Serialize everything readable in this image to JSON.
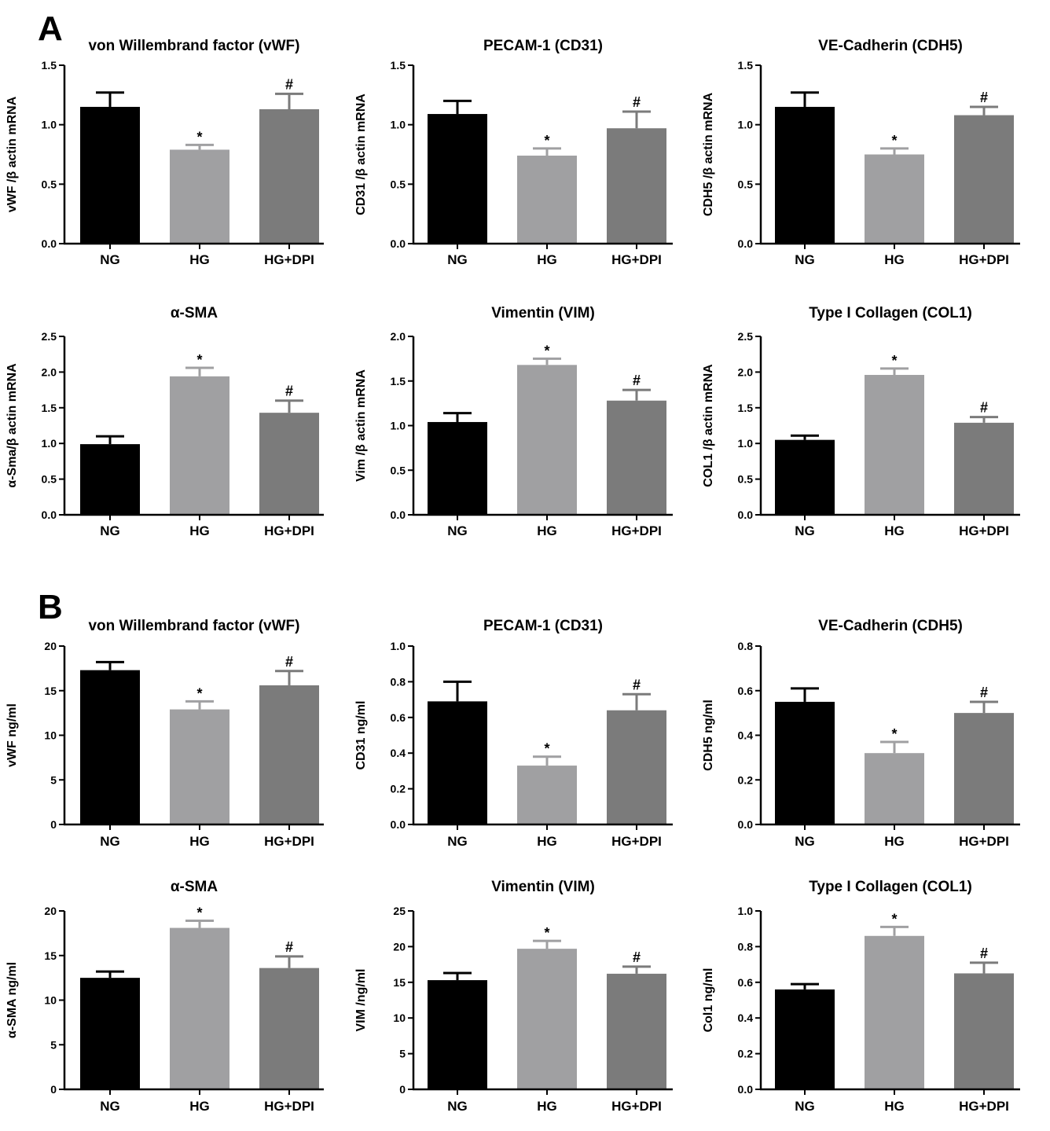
{
  "panels": [
    {
      "label": "A"
    },
    {
      "label": "B"
    }
  ],
  "colors": {
    "NG": "#000000",
    "HG": "#a0a0a2",
    "HG+DPI": "#7b7b7b",
    "axis": "#000000"
  },
  "chart_data": [
    {
      "type": "bar",
      "panel": "A",
      "title": "von Willembrand factor (vWF)",
      "ylabel": "vWF /β actin mRNA",
      "categories": [
        "NG",
        "HG",
        "HG+DPI"
      ],
      "values": [
        1.15,
        0.79,
        1.13
      ],
      "errors": [
        0.12,
        0.04,
        0.13
      ],
      "annotations": [
        "",
        "*",
        "#"
      ],
      "ylim": [
        0,
        1.5
      ],
      "yticks": [
        "0.0",
        "0.5",
        "1.0",
        "1.5"
      ]
    },
    {
      "type": "bar",
      "panel": "A",
      "title": "PECAM-1 (CD31)",
      "ylabel": "CD31 /β actin mRNA",
      "categories": [
        "NG",
        "HG",
        "HG+DPI"
      ],
      "values": [
        1.09,
        0.74,
        0.97
      ],
      "errors": [
        0.11,
        0.06,
        0.14
      ],
      "annotations": [
        "",
        "*",
        "#"
      ],
      "ylim": [
        0,
        1.5
      ],
      "yticks": [
        "0.0",
        "0.5",
        "1.0",
        "1.5"
      ]
    },
    {
      "type": "bar",
      "panel": "A",
      "title": "VE-Cadherin (CDH5)",
      "ylabel": "CDH5 /β actin mRNA",
      "categories": [
        "NG",
        "HG",
        "HG+DPI"
      ],
      "values": [
        1.15,
        0.75,
        1.08
      ],
      "errors": [
        0.12,
        0.05,
        0.07
      ],
      "annotations": [
        "",
        "*",
        "#"
      ],
      "ylim": [
        0,
        1.5
      ],
      "yticks": [
        "0.0",
        "0.5",
        "1.0",
        "1.5"
      ]
    },
    {
      "type": "bar",
      "panel": "A",
      "title": "α-SMA",
      "ylabel": "α-Sma/β actin mRNA",
      "categories": [
        "NG",
        "HG",
        "HG+DPI"
      ],
      "values": [
        0.99,
        1.94,
        1.43
      ],
      "errors": [
        0.11,
        0.12,
        0.17
      ],
      "annotations": [
        "",
        "*",
        "#"
      ],
      "ylim": [
        0,
        2.5
      ],
      "yticks": [
        "0.0",
        "0.5",
        "1.0",
        "1.5",
        "2.0",
        "2.5"
      ]
    },
    {
      "type": "bar",
      "panel": "A",
      "title": "Vimentin (VIM)",
      "ylabel": "Vim /β actin mRNA",
      "categories": [
        "NG",
        "HG",
        "HG+DPI"
      ],
      "values": [
        1.04,
        1.68,
        1.28
      ],
      "errors": [
        0.1,
        0.07,
        0.12
      ],
      "annotations": [
        "",
        "*",
        "#"
      ],
      "ylim": [
        0,
        2.0
      ],
      "yticks": [
        "0.0",
        "0.5",
        "1.0",
        "1.5",
        "2.0"
      ]
    },
    {
      "type": "bar",
      "panel": "A",
      "title": "Type I Collagen (COL1)",
      "ylabel": "COL1 /β actin mRNA",
      "categories": [
        "NG",
        "HG",
        "HG+DPI"
      ],
      "values": [
        1.05,
        1.96,
        1.29
      ],
      "errors": [
        0.06,
        0.09,
        0.08
      ],
      "annotations": [
        "",
        "*",
        "#"
      ],
      "ylim": [
        0,
        2.5
      ],
      "yticks": [
        "0.0",
        "0.5",
        "1.0",
        "1.5",
        "2.0",
        "2.5"
      ]
    },
    {
      "type": "bar",
      "panel": "B",
      "title": "von Willembrand factor (vWF)",
      "ylabel": "vWF ng/ml",
      "categories": [
        "NG",
        "HG",
        "HG+DPI"
      ],
      "values": [
        17.3,
        12.9,
        15.6
      ],
      "errors": [
        0.9,
        0.9,
        1.6
      ],
      "annotations": [
        "",
        "*",
        "#"
      ],
      "ylim": [
        0,
        20
      ],
      "yticks": [
        "0",
        "5",
        "10",
        "15",
        "20"
      ]
    },
    {
      "type": "bar",
      "panel": "B",
      "title": "PECAM-1 (CD31)",
      "ylabel": "CD31 ng/ml",
      "categories": [
        "NG",
        "HG",
        "HG+DPI"
      ],
      "values": [
        0.69,
        0.33,
        0.64
      ],
      "errors": [
        0.11,
        0.05,
        0.09
      ],
      "annotations": [
        "",
        "*",
        "#"
      ],
      "ylim": [
        0,
        1.0
      ],
      "yticks": [
        "0.0",
        "0.2",
        "0.4",
        "0.6",
        "0.8",
        "1.0"
      ]
    },
    {
      "type": "bar",
      "panel": "B",
      "title": "VE-Cadherin (CDH5)",
      "ylabel": "CDH5 ng/ml",
      "categories": [
        "NG",
        "HG",
        "HG+DPI"
      ],
      "values": [
        0.55,
        0.32,
        0.5
      ],
      "errors": [
        0.06,
        0.05,
        0.05
      ],
      "annotations": [
        "",
        "*",
        "#"
      ],
      "ylim": [
        0,
        0.8
      ],
      "yticks": [
        "0.0",
        "0.2",
        "0.4",
        "0.6",
        "0.8"
      ]
    },
    {
      "type": "bar",
      "panel": "B",
      "title": "α-SMA",
      "ylabel": "α-SMA ng/ml",
      "categories": [
        "NG",
        "HG",
        "HG+DPI"
      ],
      "values": [
        12.5,
        18.1,
        13.6
      ],
      "errors": [
        0.7,
        0.8,
        1.3
      ],
      "annotations": [
        "",
        "*",
        "#"
      ],
      "ylim": [
        0,
        20
      ],
      "yticks": [
        "0",
        "5",
        "10",
        "15",
        "20"
      ]
    },
    {
      "type": "bar",
      "panel": "B",
      "title": "Vimentin (VIM)",
      "ylabel": "VIM /ng/ml",
      "categories": [
        "NG",
        "HG",
        "HG+DPI"
      ],
      "values": [
        15.3,
        19.7,
        16.2
      ],
      "errors": [
        1.0,
        1.1,
        1.0
      ],
      "annotations": [
        "",
        "*",
        "#"
      ],
      "ylim": [
        0,
        25
      ],
      "yticks": [
        "0",
        "5",
        "10",
        "15",
        "20",
        "25"
      ]
    },
    {
      "type": "bar",
      "panel": "B",
      "title": "Type I Collagen (COL1)",
      "ylabel": "Col1 ng/ml",
      "categories": [
        "NG",
        "HG",
        "HG+DPI"
      ],
      "values": [
        0.56,
        0.86,
        0.65
      ],
      "errors": [
        0.03,
        0.05,
        0.06
      ],
      "annotations": [
        "",
        "*",
        "#"
      ],
      "ylim": [
        0,
        1.0
      ],
      "yticks": [
        "0.0",
        "0.2",
        "0.4",
        "0.6",
        "0.8",
        "1.0"
      ]
    }
  ]
}
